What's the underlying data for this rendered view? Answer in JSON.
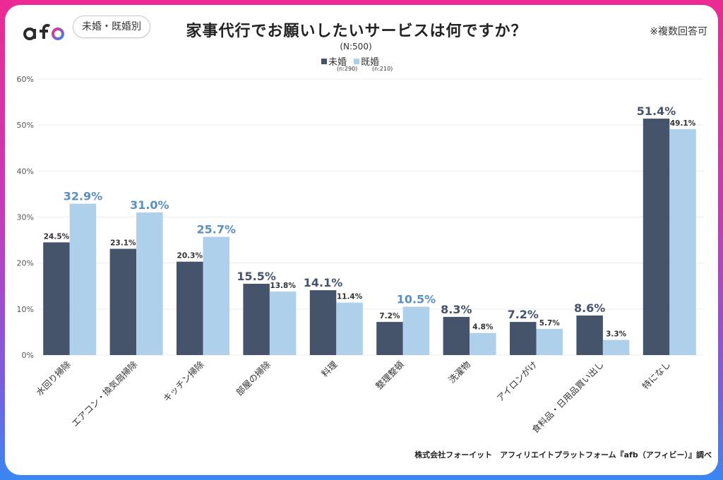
{
  "header": {
    "logo_text": "afb",
    "badge": "未婚・既婚別",
    "title": "家事代行でお願いしたいサービスは何ですか？",
    "note": "※複数回答可",
    "sample": "(N:500)"
  },
  "legend": [
    {
      "label": "未婚",
      "n": "(n:290)",
      "color": "#46546b"
    },
    {
      "label": "既婚",
      "n": "(n:210)",
      "color": "#aed0ea"
    }
  ],
  "colors": {
    "series_unmarried": "#46546b",
    "series_married": "#aed0ea",
    "highlight_unmarried_label": "#46546b",
    "highlight_married_label": "#5b8fc2",
    "grid": "#ececec",
    "axis_text": "#555555"
  },
  "chart_data": {
    "type": "bar",
    "title": "家事代行でお願いしたいサービスは何ですか？",
    "xlabel": "",
    "ylabel": "",
    "ylim": [
      0,
      60
    ],
    "yticks": [
      0,
      10,
      20,
      30,
      40,
      50,
      60
    ],
    "ytick_labels": [
      "0%",
      "10%",
      "20%",
      "30%",
      "40%",
      "50%",
      "60%"
    ],
    "grid": true,
    "legend_position": "top-center",
    "categories": [
      "水回り掃除",
      "エアコン・換気扇掃除",
      "キッチン掃除",
      "部屋の掃除",
      "料理",
      "整理整頓",
      "洗濯物",
      "アイロンがけ",
      "食料品・日用品買い出し",
      "特になし"
    ],
    "series": [
      {
        "name": "未婚",
        "values": [
          24.5,
          23.1,
          20.3,
          15.5,
          14.1,
          7.2,
          8.3,
          7.2,
          8.6,
          51.4
        ],
        "labels": [
          "24.5%",
          "23.1%",
          "20.3%",
          "15.5%",
          "14.1%",
          "7.2%",
          "8.3%",
          "7.2%",
          "8.6%",
          "51.4%"
        ]
      },
      {
        "name": "既婚",
        "values": [
          32.9,
          31.0,
          25.7,
          13.8,
          11.4,
          10.5,
          4.8,
          5.7,
          3.3,
          49.1
        ],
        "labels": [
          "32.9%",
          "31.0%",
          "25.7%",
          "13.8%",
          "11.4%",
          "10.5%",
          "4.8%",
          "5.7%",
          "3.3%",
          "49.1%"
        ]
      }
    ]
  },
  "footer": {
    "credit": "株式会社フォーイット　アフィリエイトプラットフォーム『afb（アフィビー）』調べ"
  }
}
